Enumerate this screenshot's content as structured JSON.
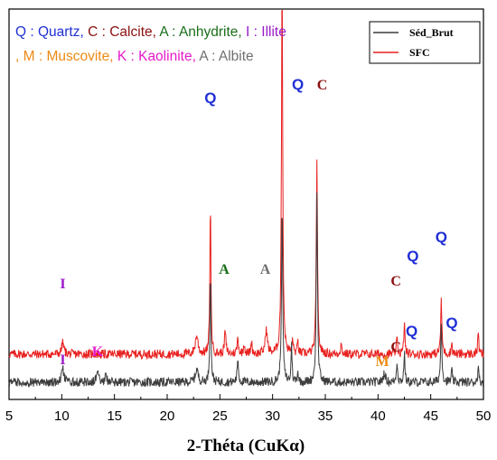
{
  "chart_data": {
    "type": "line",
    "xlabel": "2-Théta (CuKα)",
    "xlim": [
      5,
      50
    ],
    "x_ticks": [
      "5",
      "10",
      "15",
      "20",
      "25",
      "30",
      "35",
      "40",
      "45",
      "50"
    ],
    "legend": {
      "placement": "top-right",
      "entries": [
        {
          "name": "Séd_Brut",
          "color": "#3c3c3c"
        },
        {
          "name": "SFC",
          "color": "#e8201e"
        }
      ]
    },
    "mineral_key": {
      "line1": [
        {
          "text": "Q : Quartz",
          "color": "#1f2fd6"
        },
        {
          "text": ", ",
          "color": "#1f2fd6"
        },
        {
          "text": "C : Calcite",
          "color": "#8b1010"
        },
        {
          "text": ", ",
          "color": "#8b1010"
        },
        {
          "text": "A : Anhydrite",
          "color": "#1a6e1a"
        },
        {
          "text": ", ",
          "color": "#1a6e1a"
        },
        {
          "text": "I : Illite",
          "color": "#9a1ac9"
        }
      ],
      "line2": [
        {
          "text": ", M : Muscovite",
          "color": "#ec8a14"
        },
        {
          "text": ", ",
          "color": "#ec8a14"
        },
        {
          "text": "K : Kaolinite",
          "color": "#e619c9"
        },
        {
          "text": ", ",
          "color": "#e619c9"
        },
        {
          "text": "A : Albite",
          "color": "#707070"
        }
      ]
    },
    "series": [
      {
        "name": "SFC",
        "color": "#e8201e",
        "baseline": 0.075,
        "noise": 0.015,
        "peaks": [
          {
            "x": 10.1,
            "h": 0.032,
            "w": 0.12
          },
          {
            "x": 22.8,
            "h": 0.05,
            "w": 0.15
          },
          {
            "x": 24.1,
            "h": 0.4,
            "w": 0.06
          },
          {
            "x": 25.5,
            "h": 0.062,
            "w": 0.08
          },
          {
            "x": 26.7,
            "h": 0.042,
            "w": 0.08
          },
          {
            "x": 27.3,
            "h": 0.03,
            "w": 0.07
          },
          {
            "x": 28.0,
            "h": 0.03,
            "w": 0.08
          },
          {
            "x": 29.4,
            "h": 0.065,
            "w": 0.12
          },
          {
            "x": 30.9,
            "h": 1.0,
            "w": 0.07
          },
          {
            "x": 31.9,
            "h": 0.04,
            "w": 0.06
          },
          {
            "x": 32.4,
            "h": 0.032,
            "w": 0.06
          },
          {
            "x": 34.2,
            "h": 0.51,
            "w": 0.07
          },
          {
            "x": 36.5,
            "h": 0.025,
            "w": 0.08
          },
          {
            "x": 41.8,
            "h": 0.04,
            "w": 0.07
          },
          {
            "x": 42.5,
            "h": 0.085,
            "w": 0.06
          },
          {
            "x": 46.0,
            "h": 0.14,
            "w": 0.07
          },
          {
            "x": 47.0,
            "h": 0.03,
            "w": 0.06
          },
          {
            "x": 49.5,
            "h": 0.07,
            "w": 0.05
          }
        ]
      },
      {
        "name": "Séd_Brut",
        "color": "#3c3c3c",
        "baseline": 0.0,
        "noise": 0.015,
        "peaks": [
          {
            "x": 10.1,
            "h": 0.035,
            "w": 0.12
          },
          {
            "x": 13.4,
            "h": 0.04,
            "w": 0.1
          },
          {
            "x": 14.2,
            "h": 0.018,
            "w": 0.1
          },
          {
            "x": 22.8,
            "h": 0.035,
            "w": 0.15
          },
          {
            "x": 24.1,
            "h": 0.3,
            "w": 0.06
          },
          {
            "x": 26.7,
            "h": 0.065,
            "w": 0.07
          },
          {
            "x": 30.9,
            "h": 0.46,
            "w": 0.07
          },
          {
            "x": 31.8,
            "h": 0.11,
            "w": 0.05
          },
          {
            "x": 32.4,
            "h": 0.03,
            "w": 0.06
          },
          {
            "x": 34.2,
            "h": 0.5,
            "w": 0.07
          },
          {
            "x": 40.6,
            "h": 0.025,
            "w": 0.12
          },
          {
            "x": 41.8,
            "h": 0.055,
            "w": 0.07
          },
          {
            "x": 42.5,
            "h": 0.08,
            "w": 0.06
          },
          {
            "x": 46.0,
            "h": 0.16,
            "w": 0.07
          },
          {
            "x": 47.0,
            "h": 0.03,
            "w": 0.06
          },
          {
            "x": 49.5,
            "h": 0.05,
            "w": 0.05
          }
        ]
      }
    ],
    "peak_labels": [
      {
        "text": "Q",
        "x": 24.1,
        "row": "top",
        "color": "#1f2fd6"
      },
      {
        "text": "Q",
        "x": 32.4,
        "row": "top",
        "color": "#1f2fd6"
      },
      {
        "text": "C",
        "x": 34.7,
        "row": "top",
        "color": "#8b1010"
      },
      {
        "text": "I",
        "x": 10.1,
        "row": "sfc",
        "color": "#9a1ac9"
      },
      {
        "text": "A",
        "x": 25.4,
        "row": "sfc",
        "color": "#1a6e1a"
      },
      {
        "text": "A",
        "x": 29.3,
        "row": "sfc",
        "color": "#707070"
      },
      {
        "text": "C",
        "x": 41.7,
        "row": "sfc",
        "color": "#8b1010"
      },
      {
        "text": "Q",
        "x": 43.3,
        "row": "sfc",
        "color": "#1f2fd6"
      },
      {
        "text": "Q",
        "x": 46.0,
        "row": "sfc",
        "color": "#1f2fd6"
      },
      {
        "text": "I",
        "x": 10.1,
        "row": "brut",
        "color": "#9a1ac9"
      },
      {
        "text": "K",
        "x": 13.4,
        "row": "brut",
        "color": "#e619c9"
      },
      {
        "text": "M",
        "x": 40.4,
        "row": "brut",
        "color": "#ec8a14"
      },
      {
        "text": "C",
        "x": 41.7,
        "row": "brut",
        "color": "#8b1010"
      },
      {
        "text": "Q",
        "x": 43.2,
        "row": "brut",
        "color": "#1f2fd6"
      },
      {
        "text": "Q",
        "x": 47.0,
        "row": "brut",
        "color": "#1f2fd6"
      }
    ]
  }
}
